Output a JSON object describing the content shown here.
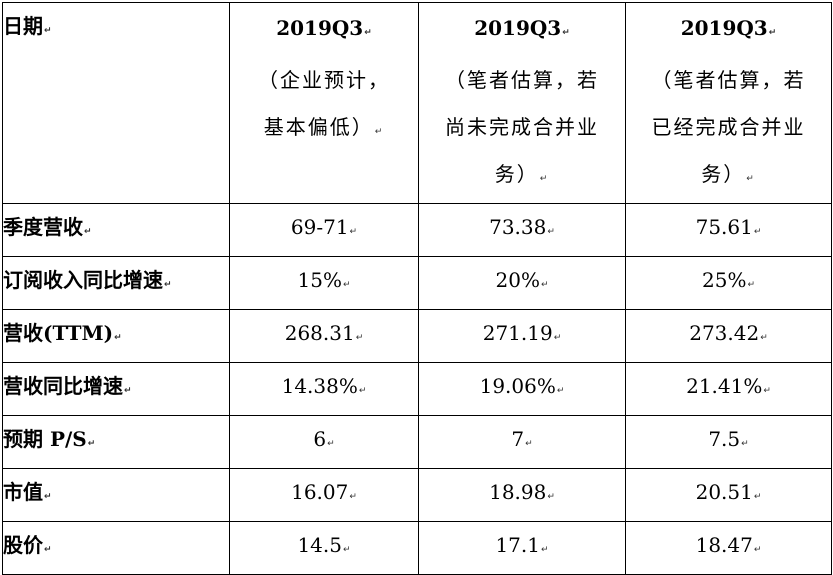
{
  "table": {
    "header": {
      "row_label": "日期",
      "columns": [
        {
          "lines": [
            "2019Q3",
            "（企业预计，",
            "基本偏低）"
          ]
        },
        {
          "lines": [
            "2019Q3",
            "（笔者估算，若",
            "尚未完成合并业",
            "务）"
          ]
        },
        {
          "lines": [
            "2019Q3",
            "（笔者估算，若",
            "已经完成合并业",
            "务）"
          ]
        }
      ]
    },
    "rows": [
      {
        "label": "季度营收",
        "values": [
          "69-71",
          "73.38",
          "75.61"
        ]
      },
      {
        "label": "订阅收入同比增速",
        "values": [
          "15%",
          "20%",
          "25%"
        ]
      },
      {
        "label": "营收(TTM)",
        "values": [
          "268.31",
          "271.19",
          "273.42"
        ]
      },
      {
        "label": "营收同比增速",
        "values": [
          "14.38%",
          "19.06%",
          "21.41%"
        ]
      },
      {
        "label": "预期 P/S",
        "values": [
          "6",
          "7",
          "7.5"
        ]
      },
      {
        "label": "市值",
        "values": [
          "16.07",
          "18.98",
          "20.51"
        ]
      },
      {
        "label": "股价",
        "values": [
          "14.5",
          "17.1",
          "18.47"
        ]
      }
    ]
  }
}
